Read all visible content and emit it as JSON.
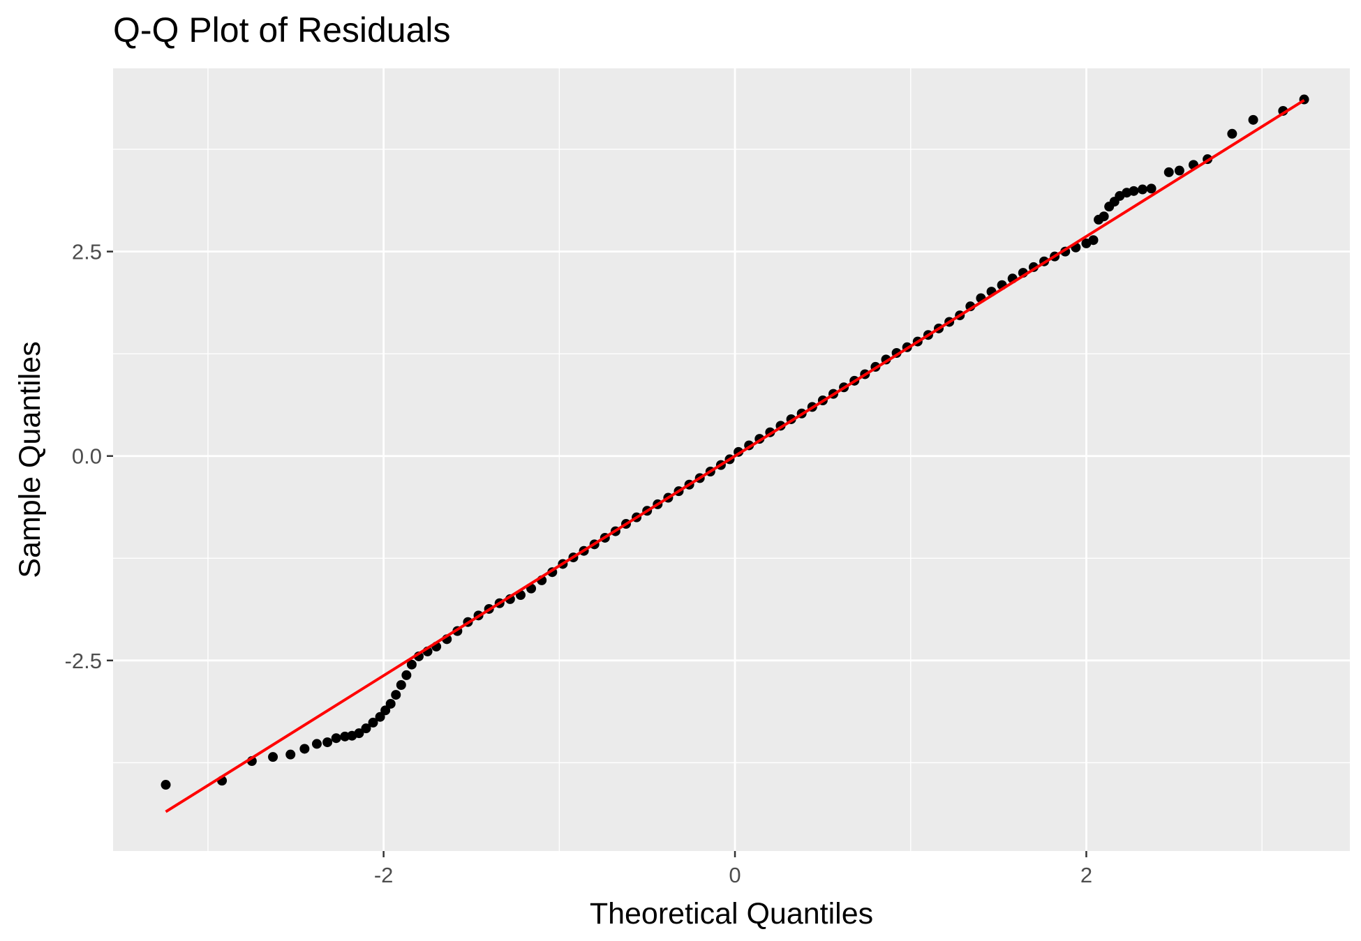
{
  "chart_data": {
    "type": "scatter",
    "title": "Q-Q Plot of Residuals",
    "xlabel": "Theoretical Quantiles",
    "ylabel": "Sample Quantiles",
    "xlim": [
      -3.54,
      3.5
    ],
    "ylim": [
      -4.83,
      4.74
    ],
    "x_ticks": [
      -2,
      0,
      2
    ],
    "x_tick_labels": [
      "-2",
      "0",
      "2"
    ],
    "y_ticks": [
      -2.5,
      0.0,
      2.5
    ],
    "y_tick_labels": [
      "-2.5",
      "0.0",
      "2.5"
    ],
    "x_minor_grid": [
      -3,
      -1,
      1,
      3
    ],
    "y_minor_grid": [
      -3.75,
      -1.25,
      1.25,
      3.75
    ],
    "grid": true,
    "reference_line": {
      "from": [
        -3.24,
        -4.35
      ],
      "to": [
        3.24,
        4.35
      ],
      "color": "#FF0000",
      "label": ""
    },
    "point_color": "#000000",
    "series": [
      {
        "points": [
          [
            -3.24,
            -4.02
          ],
          [
            -2.92,
            -3.97
          ],
          [
            -2.75,
            -3.73
          ],
          [
            -2.63,
            -3.68
          ],
          [
            -2.53,
            -3.65
          ],
          [
            -2.45,
            -3.58
          ],
          [
            -2.38,
            -3.52
          ],
          [
            -2.32,
            -3.5
          ],
          [
            -2.27,
            -3.45
          ],
          [
            -2.22,
            -3.43
          ],
          [
            -2.18,
            -3.42
          ],
          [
            -2.14,
            -3.39
          ],
          [
            -2.1,
            -3.33
          ],
          [
            -2.06,
            -3.26
          ],
          [
            -2.02,
            -3.19
          ],
          [
            -1.99,
            -3.11
          ],
          [
            -1.96,
            -3.03
          ],
          [
            -1.93,
            -2.92
          ],
          [
            -1.9,
            -2.8
          ],
          [
            -1.87,
            -2.68
          ],
          [
            -1.84,
            -2.55
          ],
          [
            -1.8,
            -2.45
          ],
          [
            -1.75,
            -2.39
          ],
          [
            -1.7,
            -2.33
          ],
          [
            -1.64,
            -2.24
          ],
          [
            -1.58,
            -2.14
          ],
          [
            -1.52,
            -2.03
          ],
          [
            -1.46,
            -1.95
          ],
          [
            -1.4,
            -1.87
          ],
          [
            -1.34,
            -1.8
          ],
          [
            -1.28,
            -1.75
          ],
          [
            -1.22,
            -1.7
          ],
          [
            -1.16,
            -1.62
          ],
          [
            -1.1,
            -1.52
          ],
          [
            -1.04,
            -1.42
          ],
          [
            -0.98,
            -1.32
          ],
          [
            -0.92,
            -1.24
          ],
          [
            -0.86,
            -1.16
          ],
          [
            -0.8,
            -1.08
          ],
          [
            -0.74,
            -1.0
          ],
          [
            -0.68,
            -0.92
          ],
          [
            -0.62,
            -0.83
          ],
          [
            -0.56,
            -0.75
          ],
          [
            -0.5,
            -0.67
          ],
          [
            -0.44,
            -0.59
          ],
          [
            -0.38,
            -0.51
          ],
          [
            -0.32,
            -0.43
          ],
          [
            -0.26,
            -0.35
          ],
          [
            -0.2,
            -0.27
          ],
          [
            -0.14,
            -0.19
          ],
          [
            -0.08,
            -0.11
          ],
          [
            -0.03,
            -0.04
          ],
          [
            0.02,
            0.05
          ],
          [
            0.08,
            0.13
          ],
          [
            0.14,
            0.21
          ],
          [
            0.2,
            0.29
          ],
          [
            0.26,
            0.37
          ],
          [
            0.32,
            0.45
          ],
          [
            0.38,
            0.52
          ],
          [
            0.44,
            0.6
          ],
          [
            0.5,
            0.68
          ],
          [
            0.56,
            0.76
          ],
          [
            0.62,
            0.84
          ],
          [
            0.68,
            0.92
          ],
          [
            0.74,
            1.0
          ],
          [
            0.8,
            1.09
          ],
          [
            0.86,
            1.18
          ],
          [
            0.92,
            1.26
          ],
          [
            0.98,
            1.33
          ],
          [
            1.04,
            1.4
          ],
          [
            1.1,
            1.48
          ],
          [
            1.16,
            1.56
          ],
          [
            1.22,
            1.64
          ],
          [
            1.28,
            1.72
          ],
          [
            1.34,
            1.83
          ],
          [
            1.4,
            1.93
          ],
          [
            1.46,
            2.01
          ],
          [
            1.52,
            2.09
          ],
          [
            1.58,
            2.17
          ],
          [
            1.64,
            2.24
          ],
          [
            1.7,
            2.31
          ],
          [
            1.76,
            2.38
          ],
          [
            1.82,
            2.44
          ],
          [
            1.88,
            2.5
          ],
          [
            1.94,
            2.55
          ],
          [
            2.0,
            2.6
          ],
          [
            2.04,
            2.64
          ],
          [
            2.07,
            2.89
          ],
          [
            2.1,
            2.93
          ],
          [
            2.13,
            3.05
          ],
          [
            2.16,
            3.11
          ],
          [
            2.19,
            3.18
          ],
          [
            2.23,
            3.22
          ],
          [
            2.27,
            3.24
          ],
          [
            2.32,
            3.26
          ],
          [
            2.37,
            3.27
          ],
          [
            2.47,
            3.47
          ],
          [
            2.53,
            3.49
          ],
          [
            2.61,
            3.56
          ],
          [
            2.69,
            3.63
          ],
          [
            2.83,
            3.94
          ],
          [
            2.95,
            4.11
          ],
          [
            3.12,
            4.22
          ],
          [
            3.24,
            4.36
          ]
        ]
      }
    ]
  }
}
